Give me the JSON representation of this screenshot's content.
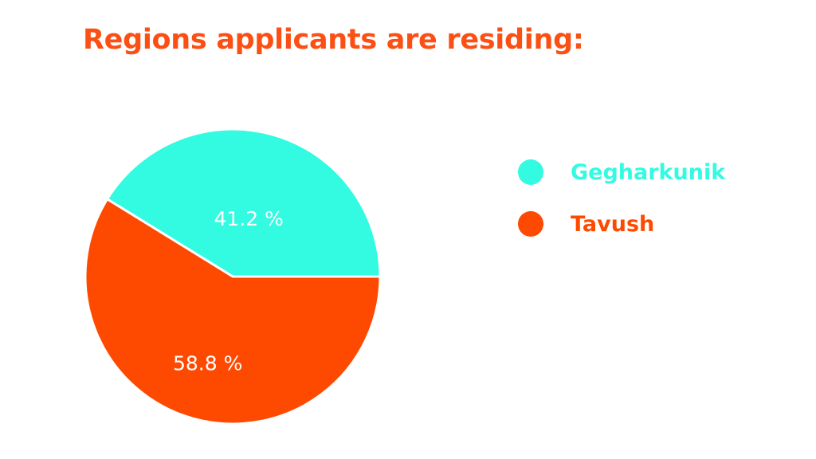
{
  "title": "Regions applicants are residing:",
  "colors": {
    "title": "#fb4f14",
    "gegharkunik": "#33fbe2",
    "tavush": "#fe4a00",
    "background": "#ffffff"
  },
  "chart_data": {
    "type": "pie",
    "title": "Regions applicants are residing:",
    "slices": [
      {
        "name": "Gegharkunik",
        "value": 41.2,
        "label": "41.2 %",
        "color": "#33fbe2"
      },
      {
        "name": "Tavush",
        "value": 58.8,
        "label": "58.8 %",
        "color": "#fe4a00"
      }
    ],
    "legend_position": "right"
  },
  "legend": {
    "items": [
      {
        "label": "Gegharkunik",
        "color": "#33fbe2"
      },
      {
        "label": "Tavush",
        "color": "#fe4a00"
      }
    ]
  }
}
